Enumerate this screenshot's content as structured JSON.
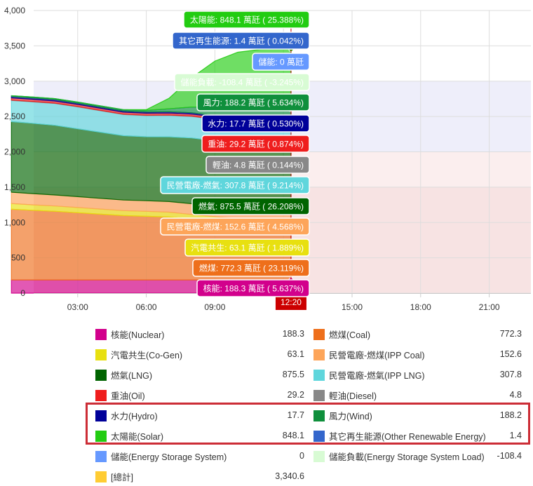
{
  "chart_data": {
    "type": "area",
    "stacked": true,
    "ylim": [
      0,
      4000
    ],
    "yticks": [
      "0",
      "500",
      "1,000",
      "1,500",
      "2,000",
      "2,500",
      "3,000",
      "3,500",
      "4,000"
    ],
    "xticks": [
      "03:00",
      "06:00",
      "09:00",
      "15:00",
      "18:00",
      "21:00"
    ],
    "current_time": "12:20",
    "x_hours": [
      0.1,
      1,
      2,
      3,
      4,
      5,
      6,
      7,
      8,
      9,
      10,
      11,
      12,
      12.33
    ],
    "series": [
      {
        "name": "核能",
        "color": "#d2008c",
        "values": [
          188,
          188,
          188,
          188,
          188,
          188,
          188,
          188,
          188,
          188,
          188,
          188,
          188,
          188.3
        ]
      },
      {
        "name": "燃煤",
        "color": "#ee6f1b",
        "values": [
          1000,
          985,
          970,
          950,
          930,
          910,
          900,
          890,
          860,
          830,
          800,
          785,
          775,
          772.3
        ]
      },
      {
        "name": "汽電共生",
        "color": "#e8e010",
        "values": [
          80,
          78,
          76,
          74,
          72,
          70,
          70,
          68,
          66,
          65,
          64,
          64,
          63,
          63.1
        ]
      },
      {
        "name": "民營電廠-燃煤",
        "color": "#fda55a",
        "values": [
          160,
          158,
          156,
          154,
          152,
          150,
          150,
          150,
          152,
          152,
          152,
          152,
          152,
          152.6
        ]
      },
      {
        "name": "燃氣",
        "color": "#006400",
        "values": [
          1000,
          995,
          985,
          960,
          935,
          910,
          905,
          915,
          930,
          920,
          905,
          890,
          880,
          875.5
        ]
      },
      {
        "name": "民營電廠-燃氣",
        "color": "#5fd6dc",
        "values": [
          300,
          305,
          310,
          310,
          305,
          300,
          300,
          305,
          305,
          306,
          307,
          307,
          307,
          307.8
        ]
      },
      {
        "name": "輕油",
        "color": "#888888",
        "values": [
          5,
          5,
          5,
          5,
          5,
          5,
          5,
          5,
          5,
          5,
          5,
          5,
          5,
          4.8
        ]
      },
      {
        "name": "重油",
        "color": "#ef1d1d",
        "values": [
          30,
          30,
          30,
          30,
          29,
          29,
          29,
          29,
          29,
          29,
          29,
          29,
          29,
          29.2
        ]
      },
      {
        "name": "水力",
        "color": "#000099",
        "values": [
          20,
          20,
          20,
          18,
          18,
          18,
          18,
          18,
          18,
          18,
          18,
          18,
          18,
          17.7
        ]
      },
      {
        "name": "風力",
        "color": "#0f8f3c",
        "values": [
          10,
          12,
          12,
          14,
          15,
          15,
          20,
          40,
          80,
          120,
          150,
          170,
          185,
          188.2
        ]
      },
      {
        "name": "其它再生能源",
        "color": "#3366cc",
        "values": [
          1.4,
          1.4,
          1.4,
          1.4,
          1.4,
          1.4,
          1.4,
          1.4,
          1.4,
          1.4,
          1.4,
          1.4,
          1.4,
          1.4
        ]
      },
      {
        "name": "太陽能",
        "color": "#22cc11",
        "values": [
          0,
          0,
          0,
          0,
          0,
          0,
          10,
          150,
          420,
          650,
          790,
          840,
          848,
          848.1
        ]
      }
    ],
    "tooltip": [
      {
        "text": "太陽能: 848.1 萬瓩 ( 25.388%)",
        "bg": "#22cc11",
        "fg": "#ffffff"
      },
      {
        "text": "其它再生能源: 1.4 萬瓩 ( 0.042%)",
        "bg": "#3366cc",
        "fg": "#ffffff"
      },
      {
        "text": "儲能: 0 萬瓩",
        "bg": "#6699ff",
        "fg": "#ffffff"
      },
      {
        "text": "儲能負載: -108.4 萬瓩 ( -3.245%)",
        "bg": "#d8fbd4",
        "fg": "#ffffff"
      },
      {
        "text": "風力: 188.2 萬瓩 ( 5.634%)",
        "bg": "#0f8f3c",
        "fg": "#ffffff"
      },
      {
        "text": "水力: 17.7 萬瓩 ( 0.530%)",
        "bg": "#000099",
        "fg": "#ffffff"
      },
      {
        "text": "重油: 29.2 萬瓩 ( 0.874%)",
        "bg": "#ef1d1d",
        "fg": "#ffffff"
      },
      {
        "text": "輕油: 4.8 萬瓩 ( 0.144%)",
        "bg": "#888888",
        "fg": "#ffffff"
      },
      {
        "text": "民營電廠-燃氣: 307.8 萬瓩 ( 9.214%)",
        "bg": "#5fd6dc",
        "fg": "#ffffff"
      },
      {
        "text": "燃氣: 875.5 萬瓩 ( 26.208%)",
        "bg": "#006400",
        "fg": "#ffffff"
      },
      {
        "text": "民營電廠-燃煤: 152.6 萬瓩 ( 4.568%)",
        "bg": "#fda55a",
        "fg": "#ffffff"
      },
      {
        "text": "汽電共生: 63.1 萬瓩 ( 1.889%)",
        "bg": "#e8e010",
        "fg": "#ffffff"
      },
      {
        "text": "燃煤: 772.3 萬瓩 ( 23.119%)",
        "bg": "#ee6f1b",
        "fg": "#ffffff"
      },
      {
        "text": "核能: 188.3 萬瓩 ( 5.637%)",
        "bg": "#d2008c",
        "fg": "#ffffff"
      }
    ]
  },
  "legend": {
    "rows": [
      [
        {
          "label": "核能(Nuclear)",
          "value": "188.3",
          "color": "#d2008c"
        },
        {
          "label": "燃煤(Coal)",
          "value": "772.3",
          "color": "#ee6f1b"
        }
      ],
      [
        {
          "label": "汽電共生(Co-Gen)",
          "value": "63.1",
          "color": "#e8e010"
        },
        {
          "label": "民營電廠-燃煤(IPP Coal)",
          "value": "152.6",
          "color": "#fda55a"
        }
      ],
      [
        {
          "label": "燃氣(LNG)",
          "value": "875.5",
          "color": "#006400"
        },
        {
          "label": "民營電廠-燃氣(IPP LNG)",
          "value": "307.8",
          "color": "#5fd6dc"
        }
      ],
      [
        {
          "label": "重油(Oil)",
          "value": "29.2",
          "color": "#ef1d1d"
        },
        {
          "label": "輕油(Diesel)",
          "value": "4.8",
          "color": "#888888"
        }
      ],
      [
        {
          "label": "水力(Hydro)",
          "value": "17.7",
          "color": "#000099"
        },
        {
          "label": "風力(Wind)",
          "value": "188.2",
          "color": "#0f8f3c"
        }
      ],
      [
        {
          "label": "太陽能(Solar)",
          "value": "848.1",
          "color": "#22cc11"
        },
        {
          "label": "其它再生能源(Other Renewable Energy)",
          "value": "1.4",
          "color": "#3366cc"
        }
      ],
      [
        {
          "label": "儲能(Energy Storage System)",
          "value": "0",
          "color": "#6699ff"
        },
        {
          "label": "儲能負載(Energy Storage System Load)",
          "value": "-108.4",
          "color": "#d8fbd4"
        }
      ],
      [
        {
          "label": "[總計]",
          "value": "3,340.6",
          "color": "#ffcc33"
        }
      ]
    ]
  }
}
